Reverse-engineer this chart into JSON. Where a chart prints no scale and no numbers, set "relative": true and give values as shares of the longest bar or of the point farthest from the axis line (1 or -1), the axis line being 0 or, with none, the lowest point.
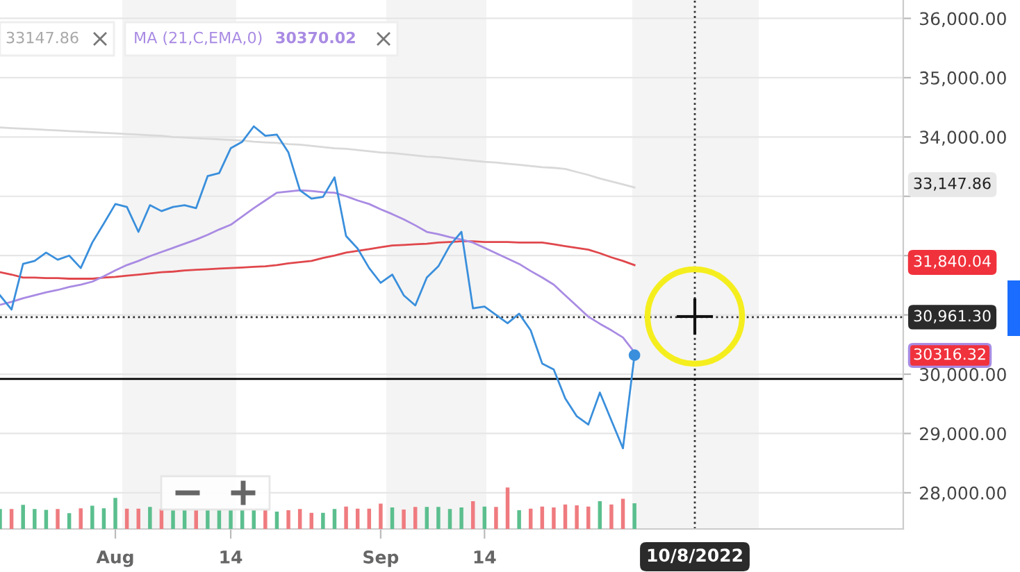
{
  "chart_data": [
    {
      "type": "line",
      "categories": [
        null,
        null,
        null,
        null,
        null,
        null,
        null,
        null,
        null,
        null,
        "Aug",
        null,
        null,
        null,
        null,
        null,
        null,
        null,
        null,
        null,
        "14",
        null,
        null,
        null,
        null,
        null,
        null,
        null,
        null,
        null,
        null,
        null,
        null,
        "Sep",
        null,
        null,
        null,
        null,
        null,
        null,
        null,
        null,
        "14",
        null,
        null,
        null,
        null,
        null,
        null,
        null,
        null,
        null,
        null,
        null,
        null,
        null,
        null,
        null,
        null,
        null,
        null,
        null,
        null,
        null,
        null,
        null,
        null,
        null,
        null,
        null,
        null,
        null,
        null,
        null,
        null,
        null,
        null,
        null,
        null
      ],
      "series": [
        {
          "color": "#d9d9d9",
          "values": [
            34160,
            34150,
            34140,
            34130,
            34120,
            34110,
            34100,
            34090,
            34080,
            34070,
            34060,
            34050,
            34040,
            34030,
            34020,
            34000,
            33990,
            33980,
            33970,
            33960,
            33950,
            33940,
            33920,
            33910,
            33900,
            33880,
            33870,
            33850,
            33830,
            33810,
            33800,
            33780,
            33760,
            33740,
            33730,
            33710,
            33690,
            33670,
            33660,
            33640,
            33620,
            33600,
            33580,
            33570,
            33550,
            33530,
            33510,
            33490,
            33480,
            33460,
            33410,
            33360,
            33300,
            33250,
            33200,
            33150,
            null,
            null,
            null,
            null,
            null,
            null,
            null,
            null,
            null,
            null,
            null,
            null,
            null,
            null,
            null,
            null,
            null,
            null,
            null,
            null,
            null,
            null,
            null
          ]
        },
        {
          "color": "#e0474c",
          "values": [
            31720,
            31680,
            31630,
            31630,
            31620,
            31620,
            31610,
            31610,
            31610,
            31630,
            31640,
            31660,
            31680,
            31700,
            31720,
            31730,
            31750,
            31760,
            31770,
            31780,
            31790,
            31800,
            31810,
            31820,
            31840,
            31870,
            31890,
            31910,
            31960,
            32000,
            32050,
            32080,
            32110,
            32140,
            32170,
            32180,
            32190,
            32200,
            32220,
            32230,
            32240,
            32240,
            32230,
            32230,
            32230,
            32220,
            32220,
            32220,
            32190,
            32160,
            32130,
            32100,
            32040,
            31970,
            31910,
            31840,
            null,
            null,
            null,
            null,
            null,
            null,
            null,
            null,
            null,
            null,
            null,
            null,
            null,
            null,
            null,
            null,
            null,
            null,
            null,
            null,
            null,
            null,
            null
          ]
        },
        {
          "name": "MA (21,C,EMA,0)",
          "color": "#a98be3",
          "values": [
            31170,
            31220,
            31280,
            31330,
            31380,
            31420,
            31470,
            31510,
            31560,
            31650,
            31750,
            31840,
            31910,
            31990,
            32060,
            32130,
            32200,
            32270,
            32350,
            32440,
            32520,
            32660,
            32800,
            32930,
            33060,
            33080,
            33100,
            33090,
            33070,
            33060,
            33000,
            32930,
            32870,
            32780,
            32700,
            32610,
            32510,
            32400,
            32360,
            32310,
            32270,
            32220,
            32130,
            32040,
            31950,
            31860,
            31740,
            31630,
            31510,
            31330,
            31150,
            30970,
            30850,
            30740,
            30620,
            30370,
            null,
            null,
            null,
            null,
            null,
            null,
            null,
            null,
            null,
            null,
            null,
            null,
            null,
            null,
            null,
            null,
            null,
            null,
            null,
            null,
            null,
            null,
            null
          ]
        },
        {
          "color": "#3a8fdc",
          "values": [
            31330,
            31090,
            31860,
            31910,
            32050,
            31930,
            32000,
            31790,
            32220,
            32540,
            32870,
            32820,
            32400,
            32850,
            32750,
            32820,
            32850,
            32800,
            33340,
            33390,
            33810,
            33920,
            34180,
            34020,
            34040,
            33740,
            33100,
            32960,
            32990,
            33320,
            32330,
            32120,
            31790,
            31540,
            31680,
            31330,
            31160,
            31630,
            31820,
            32170,
            32400,
            31110,
            31140,
            31000,
            30860,
            31020,
            30740,
            30180,
            30080,
            29590,
            29290,
            29150,
            29690,
            29220,
            28750,
            30320,
            null,
            null,
            null,
            null,
            null,
            null,
            null,
            null,
            null,
            null,
            null,
            null,
            null,
            null,
            null,
            null,
            null,
            null,
            null,
            null,
            null,
            null,
            null
          ]
        }
      ],
      "ylim": [
        27390,
        36310
      ],
      "yticks": [
        {
          "value": 28000,
          "label": "28,000.00"
        },
        {
          "value": 29000,
          "label": "29,000.00"
        },
        {
          "value": 30000,
          "label": "30,000.00"
        },
        {
          "value": 31000,
          "label": null
        },
        {
          "value": 32000,
          "label": null
        },
        {
          "value": 33000,
          "label": null
        },
        {
          "value": 34000,
          "label": "34,000.00"
        },
        {
          "value": 35000,
          "label": "35,000.00"
        },
        {
          "value": 36000,
          "label": "36,000.00"
        }
      ],
      "grid": "y",
      "ref_lines": [
        {
          "axis": "y",
          "value": 29920,
          "color": "#000000",
          "line_style": "solid"
        },
        {
          "axis": "y",
          "value": 30961.3,
          "label": "30,961.30",
          "color": "#333333",
          "line_style": "dotted"
        }
      ],
      "annotations": [
        "33147.86",
        "30370.02",
        "33,147.86",
        "31,840.04",
        "30316.32",
        "10/8/2022"
      ]
    },
    {
      "type": "bar",
      "relative": true,
      "categories": [
        null,
        null,
        null,
        null,
        null,
        null,
        null,
        null,
        null,
        null,
        null,
        null,
        null,
        null,
        null,
        null,
        null,
        null,
        null,
        null,
        null,
        null,
        null,
        null,
        null,
        null,
        null,
        null,
        null,
        null,
        null,
        null,
        null,
        null,
        null,
        null,
        null,
        null,
        null,
        null,
        null,
        null,
        null,
        null,
        null,
        null,
        null,
        null,
        null,
        null,
        null,
        null,
        null,
        null,
        null,
        null,
        null,
        null,
        null,
        null,
        null,
        null,
        null,
        null,
        null,
        null,
        null,
        null,
        null,
        null,
        null,
        null,
        null,
        null,
        null,
        null,
        null,
        null,
        null
      ],
      "values": [
        0.48,
        0.48,
        0.58,
        0.48,
        0.46,
        0.48,
        0.38,
        0.5,
        0.56,
        0.5,
        0.75,
        0.49,
        0.49,
        0.53,
        0.48,
        0.45,
        0.45,
        0.45,
        0.45,
        0.45,
        0.45,
        0.45,
        0.45,
        0.45,
        0.42,
        0.45,
        0.48,
        0.39,
        0.39,
        0.48,
        0.54,
        0.49,
        0.49,
        0.61,
        0.52,
        0.47,
        0.53,
        0.53,
        0.53,
        0.48,
        0.52,
        0.67,
        0.54,
        0.53,
        1,
        0.45,
        0.49,
        0.54,
        0.52,
        0.59,
        0.57,
        0.54,
        0.67,
        0.59,
        0.73,
        0.62,
        null,
        null,
        null,
        null,
        null,
        null,
        null,
        null,
        null,
        null,
        null,
        null,
        null,
        null,
        null,
        null,
        null,
        null,
        null,
        null,
        null,
        null,
        null
      ],
      "colors": [
        "#5bbf8e",
        "#ef7b7f",
        "#5bbf8e",
        "#5bbf8e",
        "#5bbf8e",
        "#ef7b7f",
        "#5bbf8e",
        "#ef7b7f",
        "#5bbf8e",
        "#5bbf8e",
        "#5bbf8e",
        "#ef7b7f",
        "#ef7b7f",
        "#5bbf8e",
        "#ef7b7f",
        "#5bbf8e",
        "#5bbf8e",
        "#ef7b7f",
        "#5bbf8e",
        "#5bbf8e",
        "#5bbf8e",
        "#5bbf8e",
        "#5bbf8e",
        "#ef7b7f",
        "#5bbf8e",
        "#ef7b7f",
        "#ef7b7f",
        "#ef7b7f",
        "#5bbf8e",
        "#5bbf8e",
        "#ef7b7f",
        "#ef7b7f",
        "#ef7b7f",
        "#ef7b7f",
        "#5bbf8e",
        "#ef7b7f",
        "#ef7b7f",
        "#5bbf8e",
        "#5bbf8e",
        "#5bbf8e",
        "#5bbf8e",
        "#ef7b7f",
        "#5bbf8e",
        "#ef7b7f",
        "#ef7b7f",
        "#5bbf8e",
        "#ef7b7f",
        "#ef7b7f",
        "#ef7b7f",
        "#ef7b7f",
        "#ef7b7f",
        "#ef7b7f",
        "#5bbf8e",
        "#ef7b7f",
        "#ef7b7f",
        "#5bbf8e",
        null,
        null,
        null,
        null,
        null,
        null,
        null,
        null,
        null,
        null,
        null,
        null,
        null,
        null,
        null,
        null,
        null,
        null,
        null,
        null,
        null,
        null,
        null
      ]
    }
  ]
}
